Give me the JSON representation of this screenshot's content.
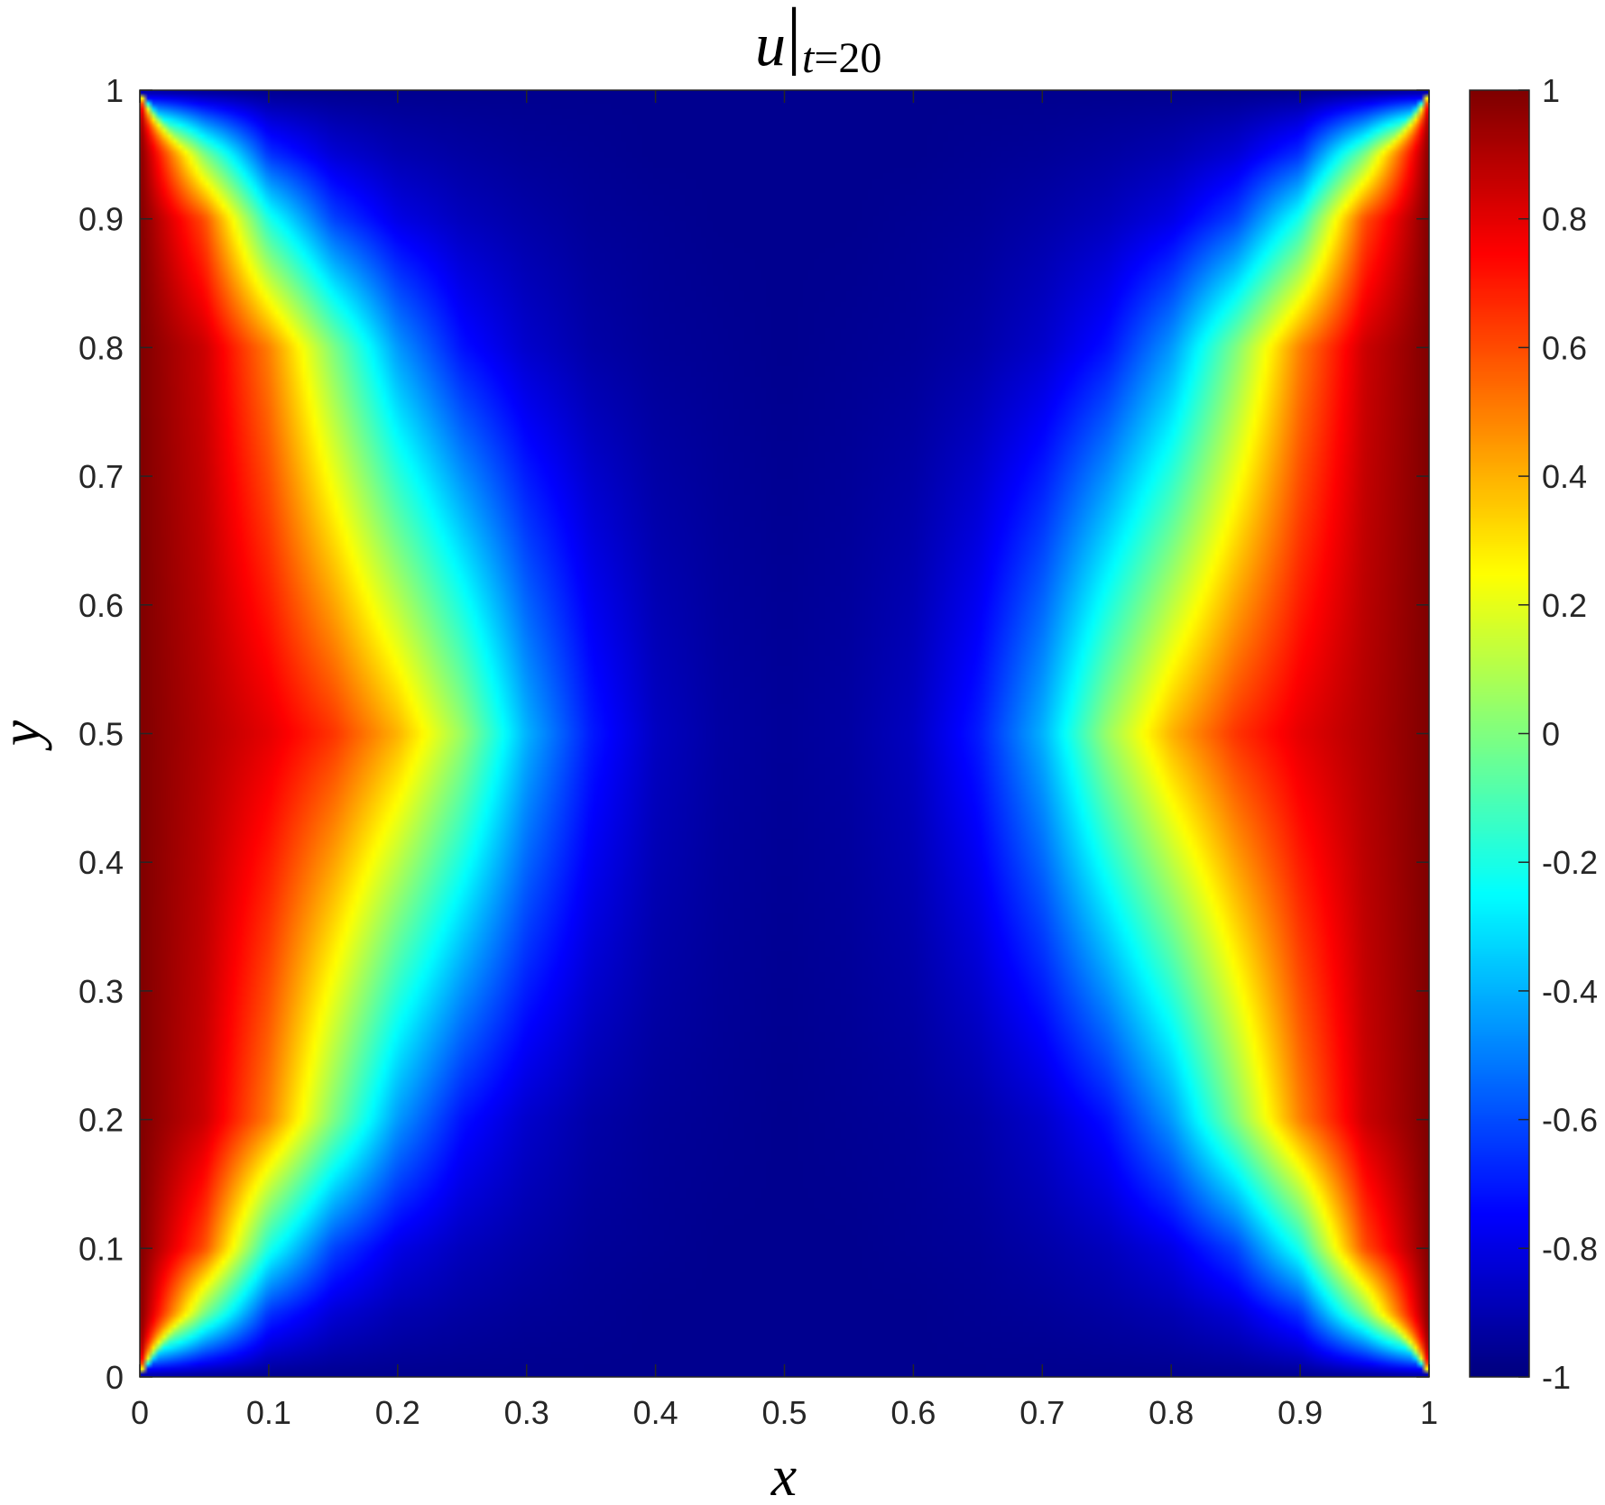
{
  "chart_data": {
    "type": "heatmap",
    "title": {
      "main": "u",
      "bar": "|",
      "sub_var": "t",
      "sub_rest": "=20"
    },
    "xlabel": "x",
    "ylabel": "y",
    "xlim": [
      0,
      1
    ],
    "ylim": [
      0,
      1
    ],
    "xticks": [
      "0",
      "0.1",
      "0.2",
      "0.3",
      "0.4",
      "0.5",
      "0.6",
      "0.7",
      "0.8",
      "0.9",
      "1"
    ],
    "yticks": [
      "0",
      "0.1",
      "0.2",
      "0.3",
      "0.4",
      "0.5",
      "0.6",
      "0.7",
      "0.8",
      "0.9",
      "1"
    ],
    "colorbar": {
      "range": [
        -1,
        1
      ],
      "ticks": [
        "-1",
        "-0.8",
        "-0.6",
        "-0.4",
        "-0.2",
        "0",
        "0.2",
        "0.4",
        "0.6",
        "0.8",
        "1"
      ],
      "colormap": "jet"
    },
    "field": {
      "x": [
        0,
        0.05,
        0.1,
        0.15,
        0.2,
        0.25,
        0.3,
        0.35,
        0.4,
        0.45,
        0.5,
        0.55,
        0.6,
        0.65,
        0.7,
        0.75,
        0.8,
        0.85,
        0.9,
        0.95,
        1
      ],
      "y": [
        0.5,
        0.2,
        0.1,
        0.05
      ],
      "values": [
        [
          1.0,
          0.9,
          0.8,
          0.65,
          0.4,
          0.05,
          -0.4,
          -0.7,
          -0.87,
          -0.93,
          -0.95,
          -0.93,
          -0.87,
          -0.7,
          -0.4,
          0.05,
          0.4,
          0.65,
          0.8,
          0.9,
          1.0
        ],
        [
          1.0,
          0.85,
          0.5,
          0.0,
          -0.45,
          -0.72,
          -0.85,
          -0.92,
          -0.95,
          -0.96,
          -0.97,
          -0.96,
          -0.95,
          -0.92,
          -0.85,
          -0.72,
          -0.45,
          0.0,
          0.5,
          0.85,
          1.0
        ],
        [
          1.0,
          0.6,
          -0.2,
          -0.62,
          -0.8,
          -0.88,
          -0.92,
          -0.95,
          -0.96,
          -0.97,
          -0.97,
          -0.97,
          -0.96,
          -0.95,
          -0.92,
          -0.88,
          -0.8,
          -0.62,
          -0.2,
          0.6,
          1.0
        ],
        [
          1.0,
          0.0,
          -0.65,
          -0.83,
          -0.9,
          -0.93,
          -0.95,
          -0.96,
          -0.97,
          -0.97,
          -0.97,
          -0.97,
          -0.97,
          -0.96,
          -0.95,
          -0.93,
          -0.9,
          -0.83,
          -0.65,
          0.0,
          1.0
        ]
      ],
      "symmetric_about_y": 0.5
    },
    "grid": false
  }
}
